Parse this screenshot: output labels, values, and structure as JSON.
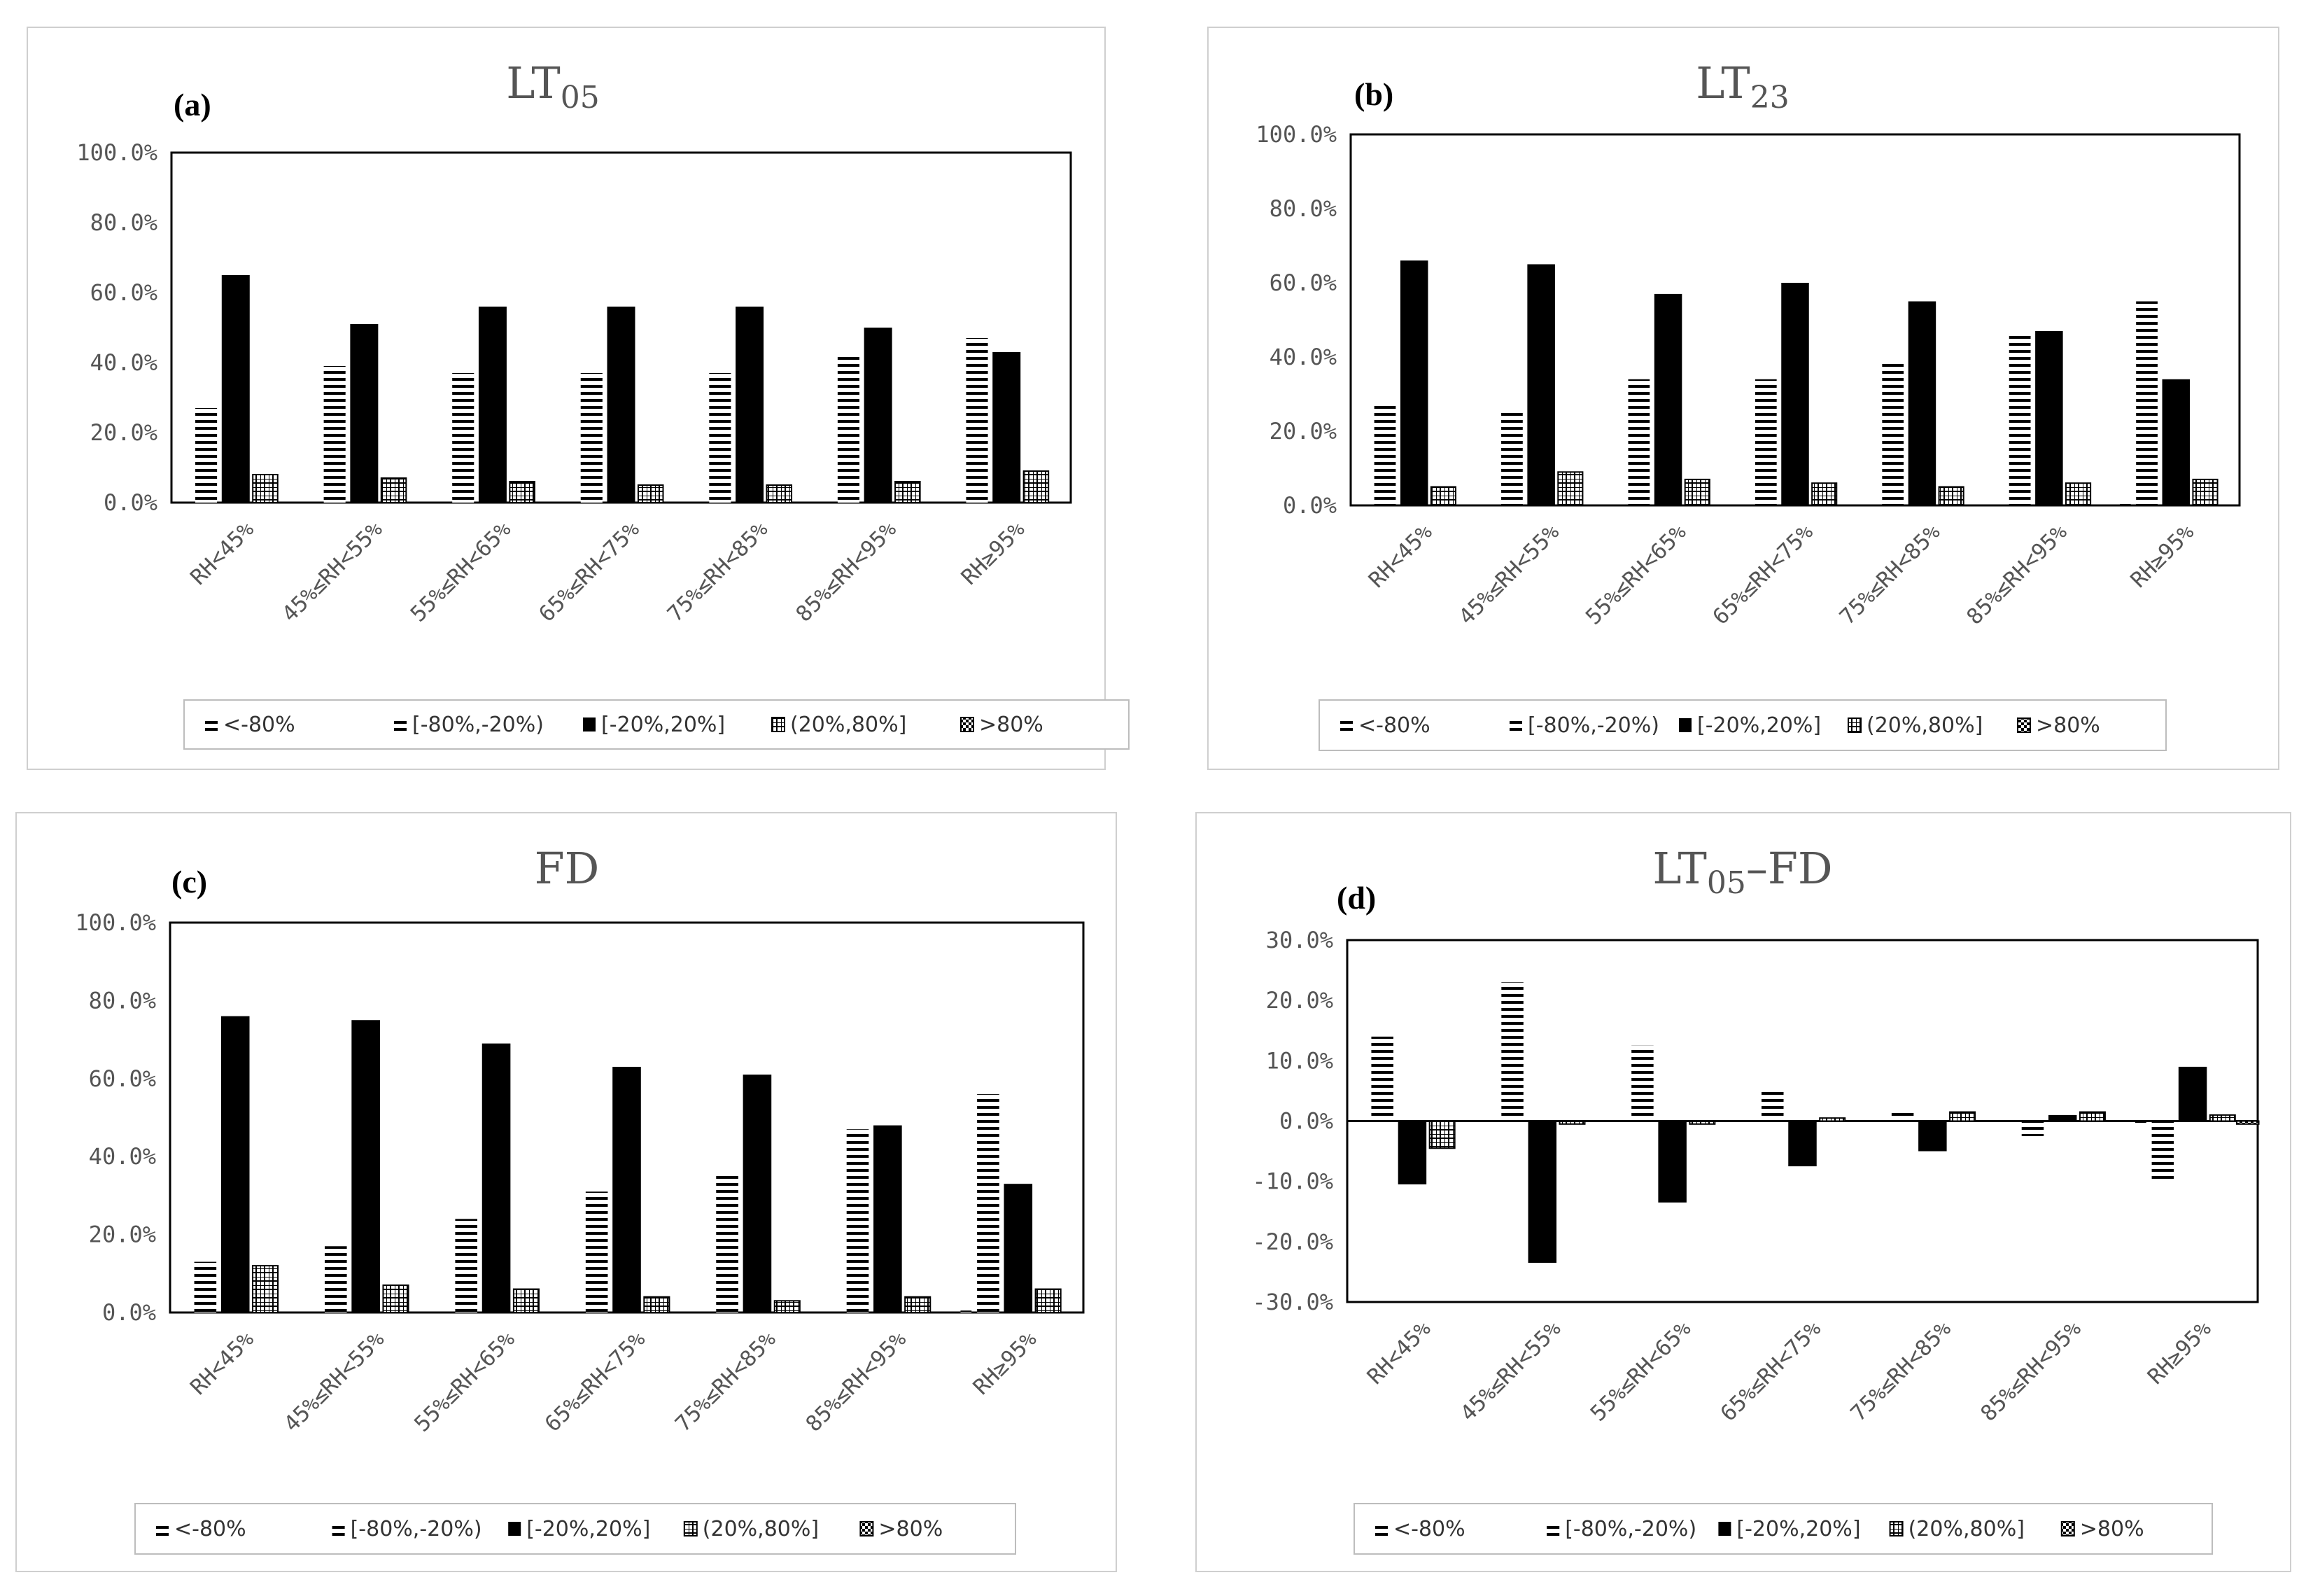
{
  "chart_data": [
    {
      "type": "bar",
      "label": "(a)",
      "title": "LT",
      "title_sub": "05",
      "title_suffix": "",
      "ylim": [
        0,
        100
      ],
      "yticks": [
        0,
        20,
        40,
        60,
        80,
        100
      ],
      "tick_labels": [
        "0.0%",
        "20.0%",
        "40.0%",
        "60.0%",
        "80.0%",
        "100.0%"
      ],
      "categories": [
        "RH<45%",
        "45%≤RH<55%",
        "55%≤RH<65%",
        "65%≤RH<75%",
        "75%≤RH<85%",
        "85%≤RH<95%",
        "RH≥95%"
      ],
      "legend": [
        "<-80%",
        "[-80%,-20%)",
        "[-20%,20%]",
        "(20%,80%]",
        ">80%"
      ],
      "series": [
        {
          "name": "<-80%",
          "values": [
            0,
            0,
            0,
            0,
            0,
            0,
            0
          ]
        },
        {
          "name": "[-80%,-20%)",
          "values": [
            27,
            39,
            37,
            37,
            37,
            42,
            47
          ]
        },
        {
          "name": "[-20%,20%]",
          "values": [
            65,
            51,
            56,
            56,
            56,
            50,
            43
          ]
        },
        {
          "name": "(20%,80%]",
          "values": [
            8,
            7,
            6,
            5,
            5,
            6,
            9
          ]
        },
        {
          "name": ">80%",
          "values": [
            0,
            0,
            0,
            0,
            0,
            0,
            0
          ]
        }
      ]
    },
    {
      "type": "bar",
      "label": "(b)",
      "title": "LT",
      "title_sub": "23",
      "title_suffix": "",
      "ylim": [
        0,
        100
      ],
      "yticks": [
        0,
        20,
        40,
        60,
        80,
        100
      ],
      "tick_labels": [
        "0.0%",
        "20.0%",
        "40.0%",
        "60.0%",
        "80.0%",
        "100.0%"
      ],
      "categories": [
        "RH<45%",
        "45%≤RH<55%",
        "55%≤RH<65%",
        "65%≤RH<75%",
        "75%≤RH<85%",
        "85%≤RH<95%",
        "RH≥95%"
      ],
      "legend": [
        "<-80%",
        "[-80%,-20%)",
        "[-20%,20%]",
        "(20%,80%]",
        ">80%"
      ],
      "series": [
        {
          "name": "<-80%",
          "values": [
            0,
            0,
            0,
            0,
            0,
            0,
            0.5
          ]
        },
        {
          "name": "[-80%,-20%)",
          "values": [
            27,
            25,
            34,
            34,
            39,
            46,
            55
          ]
        },
        {
          "name": "[-20%,20%]",
          "values": [
            66,
            65,
            57,
            60,
            55,
            47,
            34
          ]
        },
        {
          "name": "(20%,80%]",
          "values": [
            5,
            9,
            7,
            6,
            5,
            6,
            7
          ]
        },
        {
          "name": ">80%",
          "values": [
            0,
            0,
            0,
            0,
            0,
            0,
            0
          ]
        }
      ]
    },
    {
      "type": "bar",
      "label": "(c)",
      "title": "FD",
      "title_sub": "",
      "title_suffix": "",
      "ylim": [
        0,
        100
      ],
      "yticks": [
        0,
        20,
        40,
        60,
        80,
        100
      ],
      "tick_labels": [
        "0.0%",
        "20.0%",
        "40.0%",
        "60.0%",
        "80.0%",
        "100.0%"
      ],
      "categories": [
        "RH<45%",
        "45%≤RH<55%",
        "55%≤RH<65%",
        "65%≤RH<75%",
        "75%≤RH<85%",
        "85%≤RH<95%",
        "RH≥95%"
      ],
      "legend": [
        "<-80%",
        "[-80%,-20%)",
        "[-20%,20%]",
        "(20%,80%]",
        ">80%"
      ],
      "series": [
        {
          "name": "<-80%",
          "values": [
            0,
            0,
            0,
            0,
            0,
            0,
            0.5
          ]
        },
        {
          "name": "[-80%,-20%)",
          "values": [
            13,
            17,
            24,
            31,
            35,
            47,
            56
          ]
        },
        {
          "name": "[-20%,20%]",
          "values": [
            76,
            75,
            69,
            63,
            61,
            48,
            33
          ]
        },
        {
          "name": "(20%,80%]",
          "values": [
            12,
            7,
            6,
            4,
            3,
            4,
            6
          ]
        },
        {
          "name": ">80%",
          "values": [
            0,
            0,
            0,
            0,
            0,
            0,
            0
          ]
        }
      ]
    },
    {
      "type": "bar",
      "label": "(d)",
      "title": "LT",
      "title_sub": "05",
      "title_suffix": "–FD",
      "ylim": [
        -30,
        30
      ],
      "yticks": [
        -30,
        -20,
        -10,
        0,
        10,
        20,
        30
      ],
      "tick_labels": [
        "-30.0%",
        "-20.0%",
        "-10.0%",
        "0.0%",
        "10.0%",
        "20.0%",
        "30.0%"
      ],
      "categories": [
        "RH<45%",
        "45%≤RH<55%",
        "55%≤RH<65%",
        "65%≤RH<75%",
        "75%≤RH<85%",
        "85%≤RH<95%",
        "RH≥95%"
      ],
      "legend": [
        "<-80%",
        "[-80%,-20%)",
        "[-20%,20%]",
        "(20%,80%]",
        ">80%"
      ],
      "series": [
        {
          "name": "<-80%",
          "values": [
            0.3,
            0.3,
            0.3,
            0.3,
            0.3,
            0,
            -0.5
          ]
        },
        {
          "name": "[-80%,-20%)",
          "values": [
            14,
            23,
            12.5,
            5,
            2,
            -2.5,
            -10
          ]
        },
        {
          "name": "[-20%,20%]",
          "values": [
            -10.5,
            -23.5,
            -13.5,
            -7.5,
            -5,
            1,
            9
          ]
        },
        {
          "name": "(20%,80%]",
          "values": [
            -4.5,
            -0.5,
            -0.5,
            0.5,
            1.5,
            1.5,
            1
          ]
        },
        {
          "name": ">80%",
          "values": [
            0,
            0,
            0,
            0,
            0,
            0,
            -0.5
          ]
        }
      ]
    }
  ]
}
